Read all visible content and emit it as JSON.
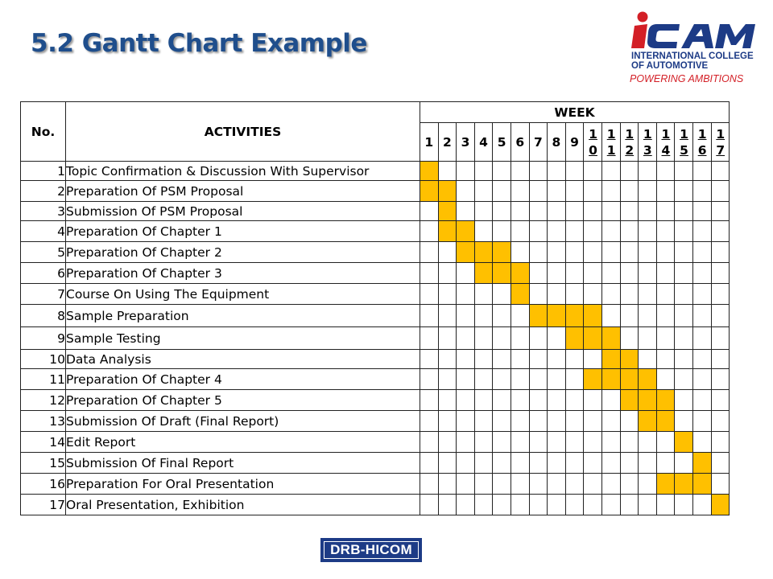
{
  "slide": {
    "title": "5.2 Gantt Chart Example"
  },
  "logo": {
    "brand": "iCAM",
    "line1": "INTERNATIONAL COLLEGE",
    "line2": "OF AUTOMOTIVE",
    "tagline": "POWERING AMBITIONS"
  },
  "footer": {
    "logo_text": "DRB-HICOM"
  },
  "colors": {
    "title": "#1f4e8c",
    "bar": "#ffc000",
    "logo_blue": "#1d3b86",
    "logo_red": "#d31f26"
  },
  "chart_data": {
    "type": "table",
    "headers": {
      "no": "No.",
      "activities": "ACTIVITIES",
      "week": "WEEK"
    },
    "weeks": [
      "1",
      "2",
      "3",
      "4",
      "5",
      "6",
      "7",
      "8",
      "9",
      "10",
      "11",
      "12",
      "13",
      "14",
      "15",
      "16",
      "17"
    ],
    "rows": [
      {
        "no": "1",
        "activity": "Topic Confirmation & Discussion With Supervisor",
        "weeks": [
          1
        ]
      },
      {
        "no": "2",
        "activity": "Preparation Of PSM Proposal",
        "weeks": [
          1,
          2
        ]
      },
      {
        "no": "3",
        "activity": "Submission Of PSM Proposal",
        "weeks": [
          2
        ]
      },
      {
        "no": "4",
        "activity": "Preparation Of Chapter 1",
        "weeks": [
          2,
          3
        ]
      },
      {
        "no": "5",
        "activity": "Preparation Of Chapter 2",
        "weeks": [
          3,
          4,
          5
        ]
      },
      {
        "no": "6",
        "activity": "Preparation Of Chapter 3",
        "weeks": [
          4,
          5,
          6
        ]
      },
      {
        "no": "7",
        "activity": "Course On Using The Equipment",
        "weeks": [
          6
        ]
      },
      {
        "no": "8",
        "activity": "Sample Preparation",
        "weeks": [
          7,
          8,
          9,
          10
        ]
      },
      {
        "no": "9",
        "activity": "Sample Testing",
        "weeks": [
          9,
          10,
          11
        ]
      },
      {
        "no": "10",
        "activity": "Data Analysis",
        "weeks": [
          11,
          12
        ]
      },
      {
        "no": "11",
        "activity": "Preparation Of Chapter 4",
        "weeks": [
          10,
          11,
          12,
          13
        ]
      },
      {
        "no": "12",
        "activity": "Preparation Of Chapter 5",
        "weeks": [
          12,
          13,
          14
        ]
      },
      {
        "no": "13",
        "activity": "Submission Of Draft (Final Report)",
        "weeks": [
          13,
          14
        ]
      },
      {
        "no": "14",
        "activity": "Edit Report",
        "weeks": [
          15
        ]
      },
      {
        "no": "15",
        "activity": "Submission Of Final Report",
        "weeks": [
          16
        ]
      },
      {
        "no": "16",
        "activity": "Preparation For Oral Presentation",
        "weeks": [
          14,
          15,
          16
        ]
      },
      {
        "no": "17",
        "activity": "Oral Presentation, Exhibition",
        "weeks": [
          17
        ]
      }
    ]
  }
}
